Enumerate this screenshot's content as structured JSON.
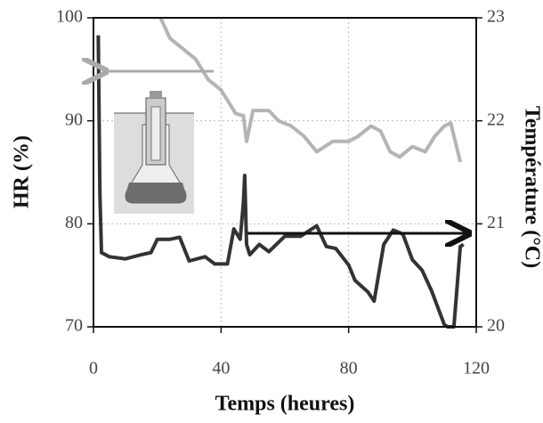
{
  "chart_data": {
    "type": "line",
    "xlabel": "Temps (heures)",
    "ylabel": "HR (%)",
    "y2label": "Température (°C)",
    "xlim": [
      0,
      120
    ],
    "xticks": [
      0,
      40,
      80,
      120
    ],
    "ylim": [
      70,
      100
    ],
    "yticks": [
      70,
      80,
      90,
      100
    ],
    "y2lim": [
      20,
      23
    ],
    "y2ticks": [
      20,
      21,
      22,
      23
    ],
    "grid": true,
    "series": [
      {
        "name": "HR",
        "color": "#333333",
        "x": [
          1.5,
          2,
          2.5,
          5,
          10,
          15,
          18,
          20,
          24,
          27,
          30,
          35,
          38,
          42,
          44,
          45,
          46,
          47,
          47.4,
          48,
          49,
          52,
          55,
          60,
          65,
          70,
          73,
          76,
          80,
          82,
          86,
          88,
          91,
          94,
          97,
          100,
          103,
          106,
          110,
          111,
          113,
          115,
          116
        ],
        "values": [
          98.3,
          83,
          77.2,
          76.8,
          76.6,
          77,
          77.2,
          78.5,
          78.5,
          78.7,
          76.4,
          76.8,
          76.1,
          76.1,
          79.5,
          79,
          78.5,
          82,
          84.7,
          78,
          77,
          78,
          77.3,
          78.8,
          78.8,
          79.8,
          77.8,
          77.6,
          76,
          74.5,
          73.4,
          72.5,
          78,
          79.4,
          79,
          76.5,
          75.5,
          73.5,
          70.2,
          70,
          70,
          77.8,
          78
        ]
      },
      {
        "name": "Température",
        "color": "#b4b4b4",
        "axis": "y2",
        "x": [
          21,
          24,
          28,
          32,
          36,
          40,
          43,
          44.6,
          47,
          48,
          50,
          55,
          58,
          62,
          66,
          70,
          75,
          80,
          83,
          87,
          90,
          93,
          96,
          100,
          104,
          107,
          110,
          112,
          115
        ],
        "values": [
          23,
          22.8,
          22.7,
          22.6,
          22.4,
          22.3,
          22.15,
          22.07,
          22.05,
          21.8,
          22.1,
          22.1,
          22.0,
          21.95,
          21.85,
          21.7,
          21.8,
          21.8,
          21.85,
          21.95,
          21.9,
          21.7,
          21.65,
          21.75,
          21.7,
          21.85,
          21.95,
          21.98,
          21.6
        ]
      }
    ]
  }
}
